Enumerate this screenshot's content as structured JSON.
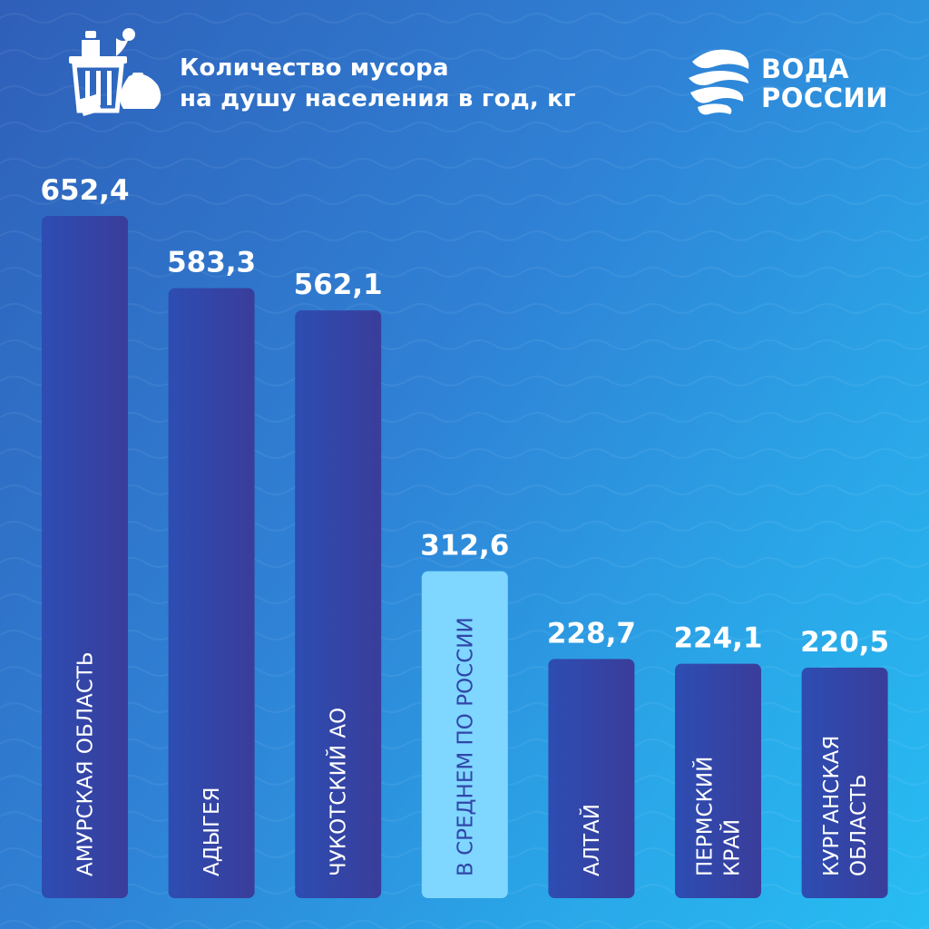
{
  "header": {
    "title_line1": "Количество мусора",
    "title_line2": "на душу населения в год, кг",
    "icon": "trash-bin-icon"
  },
  "logo": {
    "line1": "ВОДА",
    "line2": "РОССИИ",
    "icon": "water-wave-logo-icon"
  },
  "colors": {
    "bar_main": "#2d4db3",
    "bar_main_dark": "#3a3d9a",
    "bar_highlight": "#7fd6ff",
    "text_on_highlight": "#3046a8",
    "value_text": "#ffffff"
  },
  "chart_data": {
    "type": "bar",
    "title": "Количество мусора на душу населения в год, кг",
    "categories": [
      "АМУРСКАЯ ОБЛАСТЬ",
      "АДЫГЕЯ",
      "ЧУКОТСКИЙ АО",
      "В СРЕДНЕМ ПО РОССИИ",
      "АЛТАЙ",
      "ПЕРМСКИЙ КРАЙ",
      "КУРГАНСКАЯ ОБЛАСТЬ"
    ],
    "category_lines": [
      [
        "АМУРСКАЯ ОБЛАСТЬ"
      ],
      [
        "АДЫГЕЯ"
      ],
      [
        "ЧУКОТСКИЙ АО"
      ],
      [
        "В СРЕДНЕМ ПО РОССИИ"
      ],
      [
        "АЛТАЙ"
      ],
      [
        "ПЕРМСКИЙ",
        "КРАЙ"
      ],
      [
        "КУРГАНСКАЯ",
        "ОБЛАСТЬ"
      ]
    ],
    "values": [
      652.4,
      583.3,
      562.1,
      312.6,
      228.7,
      224.1,
      220.5
    ],
    "value_labels": [
      "652,4",
      "583,3",
      "562,1",
      "312,6",
      "228,7",
      "224,1",
      "220,5"
    ],
    "highlight_index": 3,
    "xlabel": "",
    "ylabel": "",
    "ylim": [
      0,
      652.4
    ],
    "grid": false,
    "legend": "none"
  }
}
